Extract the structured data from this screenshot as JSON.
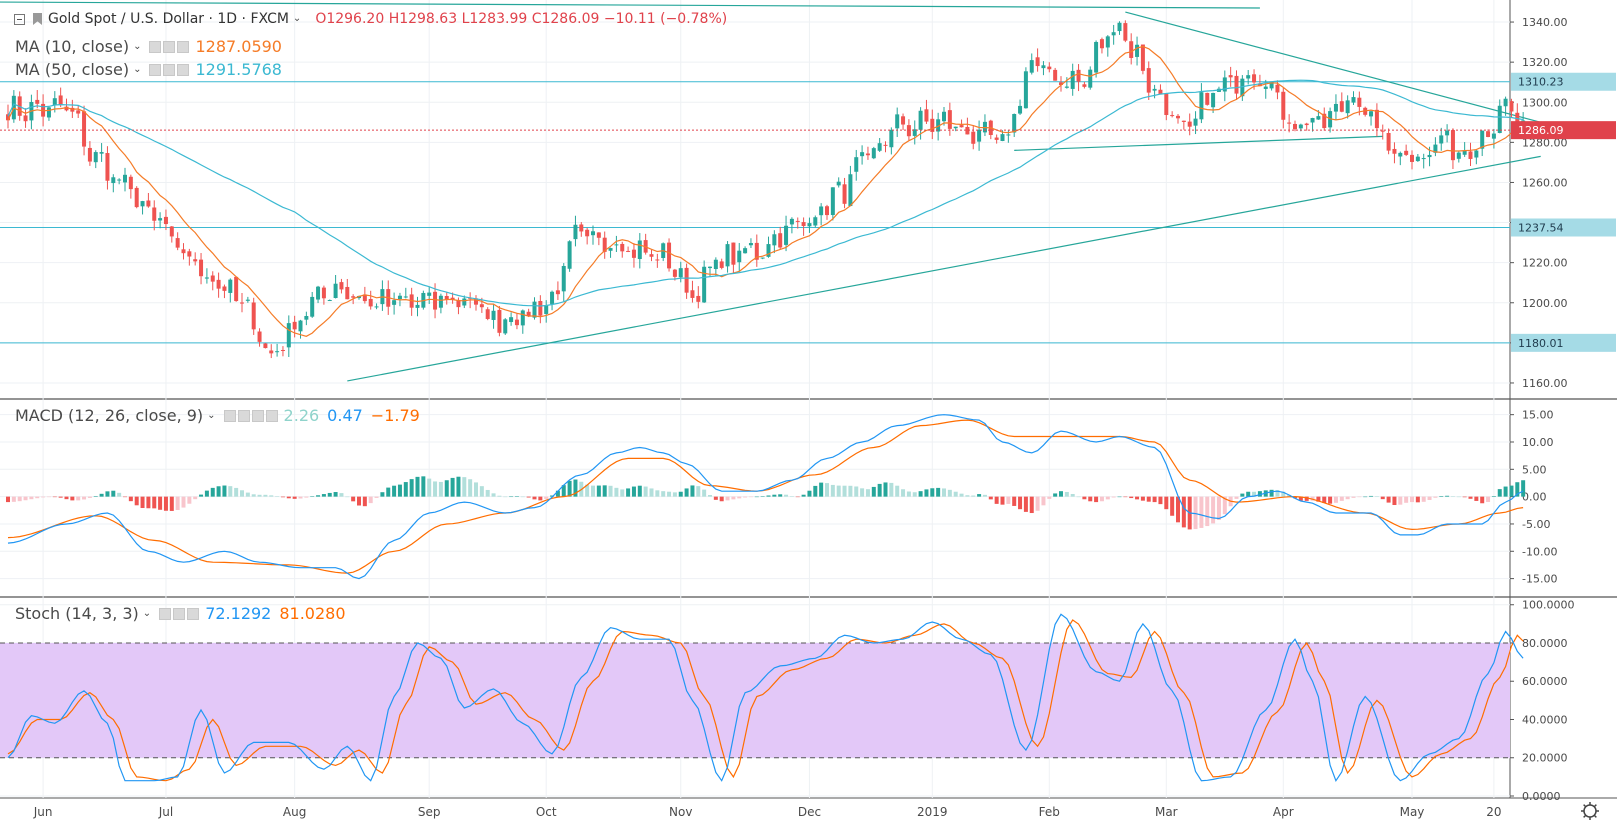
{
  "header": {
    "symbol": "Gold Spot / U.S. Dollar",
    "interval": "1D",
    "exchange": "FXCM",
    "open": "O1296.20",
    "high": "H1298.63",
    "low": "L1283.99",
    "close": "C1286.09",
    "change": "−10.11 (−0.78%)"
  },
  "indicators": {
    "ma10": {
      "label": "MA (10, close)",
      "value": "1287.0590",
      "color": "#f57c28"
    },
    "ma50": {
      "label": "MA (50, close)",
      "value": "1291.5768",
      "color": "#3cb9d2"
    },
    "macd": {
      "label": "MACD (12, 26, close, 9)",
      "hist": "2.26",
      "macd": "0.47",
      "signal": "−1.79"
    },
    "stoch": {
      "label": "Stoch (14, 3, 3)",
      "k": "72.1292",
      "d": "81.0280"
    }
  },
  "colors": {
    "up": "#26a69a",
    "down": "#ef5350",
    "hist_up": "#26a69a",
    "hist_up_light": "#b2dfdb",
    "hist_down": "#ef5350",
    "hist_down_light": "#f8c5cc",
    "macd_line": "#2196f3",
    "signal_line": "#ff6d00",
    "stoch_band": "#e3c8f8",
    "hline": "#3cb9d2",
    "trendline": "#26a69a",
    "last_price": "#e0424b"
  },
  "chart_data": [
    {
      "type": "candlestick",
      "title": "Gold Spot / U.S. Dollar",
      "y_ticks": [
        1160,
        1180,
        1200,
        1220,
        1240,
        1260,
        1280,
        1300,
        1320,
        1340
      ],
      "ylim": [
        1153,
        1350
      ],
      "x_labels": [
        "Jun",
        "Jul",
        "Aug",
        "Sep",
        "Oct",
        "Nov",
        "Dec",
        "2019",
        "Feb",
        "Mar",
        "Apr",
        "May",
        "20"
      ],
      "anchors": [
        [
          0,
          1296
        ],
        [
          10,
          1297
        ],
        [
          15,
          1272
        ],
        [
          20,
          1258
        ],
        [
          25,
          1242
        ],
        [
          30,
          1224
        ],
        [
          35,
          1212
        ],
        [
          40,
          1200
        ],
        [
          43,
          1185
        ],
        [
          45,
          1172
        ],
        [
          48,
          1186
        ],
        [
          52,
          1200
        ],
        [
          56,
          1208
        ],
        [
          62,
          1200
        ],
        [
          70,
          1200
        ],
        [
          78,
          1202
        ],
        [
          83,
          1192
        ],
        [
          88,
          1194
        ],
        [
          93,
          1202
        ],
        [
          97,
          1232
        ],
        [
          103,
          1232
        ],
        [
          107,
          1226
        ],
        [
          112,
          1223
        ],
        [
          117,
          1205
        ],
        [
          122,
          1222
        ],
        [
          128,
          1226
        ],
        [
          133,
          1236
        ],
        [
          138,
          1244
        ],
        [
          142,
          1255
        ],
        [
          147,
          1272
        ],
        [
          152,
          1288
        ],
        [
          160,
          1290
        ],
        [
          166,
          1283
        ],
        [
          170,
          1280
        ],
        [
          175,
          1318
        ],
        [
          180,
          1312
        ],
        [
          184,
          1310
        ],
        [
          187,
          1330
        ],
        [
          190,
          1340
        ],
        [
          192,
          1326
        ],
        [
          197,
          1302
        ],
        [
          201,
          1284
        ],
        [
          206,
          1305
        ],
        [
          213,
          1316
        ],
        [
          216,
          1308
        ],
        [
          219,
          1290
        ],
        [
          225,
          1290
        ],
        [
          230,
          1304
        ],
        [
          233,
          1290
        ],
        [
          237,
          1276
        ],
        [
          242,
          1274
        ],
        [
          246,
          1282
        ],
        [
          248,
          1274
        ],
        [
          252,
          1284
        ],
        [
          256,
          1296
        ],
        [
          259,
          1286
        ]
      ],
      "price_lines": [
        {
          "label": "1310.23",
          "value": 1310.23
        },
        {
          "label": "1237.54",
          "value": 1237.54
        },
        {
          "label": "1180.01",
          "value": 1180.01
        }
      ],
      "last_price": {
        "label": "1286.09",
        "value": 1286.09
      },
      "trendlines": [
        {
          "from": [
            -4,
            1350
          ],
          "to": [
            214,
            1347
          ]
        },
        {
          "from": [
            191,
            1345
          ],
          "to": [
            262,
            1290
          ]
        },
        {
          "from": [
            172,
            1276
          ],
          "to": [
            235,
            1283
          ]
        },
        {
          "from": [
            58,
            1161
          ],
          "to": [
            262,
            1273
          ]
        }
      ],
      "series": [
        {
          "name": "MA (10, close)",
          "color": "#f57c28",
          "period": 10
        },
        {
          "name": "MA (50, close)",
          "color": "#3cb9d2",
          "period": 50
        }
      ],
      "grid": true
    },
    {
      "type": "line",
      "title": "MACD (12, 26, close, 9)",
      "y_ticks": [
        -15,
        -10,
        -5,
        0,
        5,
        10,
        15
      ],
      "ylim": [
        -18,
        17.5
      ],
      "anchors_macd": [
        [
          0,
          -8.5
        ],
        [
          10,
          -5
        ],
        [
          17,
          -3
        ],
        [
          24,
          -10
        ],
        [
          30,
          -12
        ],
        [
          37,
          -10
        ],
        [
          43,
          -12
        ],
        [
          50,
          -13
        ],
        [
          56,
          -13
        ],
        [
          60,
          -15
        ],
        [
          66,
          -8
        ],
        [
          72,
          -3
        ],
        [
          78,
          -1
        ],
        [
          85,
          -3
        ],
        [
          90,
          -2
        ],
        [
          98,
          4
        ],
        [
          104,
          8
        ],
        [
          108,
          9
        ],
        [
          112,
          8
        ],
        [
          116,
          6
        ],
        [
          122,
          1
        ],
        [
          128,
          1
        ],
        [
          134,
          3
        ],
        [
          140,
          7
        ],
        [
          146,
          10
        ],
        [
          152,
          13
        ],
        [
          160,
          15
        ],
        [
          166,
          14
        ],
        [
          170,
          10
        ],
        [
          175,
          8
        ],
        [
          180,
          12
        ],
        [
          186,
          10
        ],
        [
          190,
          11
        ],
        [
          196,
          9
        ],
        [
          202,
          -3
        ],
        [
          207,
          -4
        ],
        [
          212,
          0
        ],
        [
          217,
          1
        ],
        [
          222,
          -1
        ],
        [
          227,
          -3
        ],
        [
          233,
          -3
        ],
        [
          238,
          -7
        ],
        [
          241,
          -7
        ],
        [
          246,
          -5
        ],
        [
          252,
          -5
        ],
        [
          256,
          -1
        ],
        [
          259,
          1
        ]
      ],
      "anchors_signal": [
        [
          0,
          -7.5
        ],
        [
          15,
          -3.5
        ],
        [
          25,
          -8
        ],
        [
          35,
          -12
        ],
        [
          48,
          -12.5
        ],
        [
          58,
          -14
        ],
        [
          66,
          -10
        ],
        [
          75,
          -5
        ],
        [
          85,
          -3
        ],
        [
          95,
          0
        ],
        [
          106,
          7
        ],
        [
          112,
          7
        ],
        [
          120,
          2
        ],
        [
          128,
          1
        ],
        [
          138,
          4
        ],
        [
          148,
          9
        ],
        [
          156,
          13
        ],
        [
          164,
          14
        ],
        [
          172,
          11
        ],
        [
          182,
          11
        ],
        [
          190,
          11
        ],
        [
          196,
          10
        ],
        [
          202,
          3
        ],
        [
          210,
          -1
        ],
        [
          220,
          0
        ],
        [
          232,
          -3
        ],
        [
          240,
          -6
        ],
        [
          248,
          -5
        ],
        [
          255,
          -3
        ],
        [
          259,
          -2
        ]
      ],
      "series": [
        {
          "name": "MACD",
          "color": "#2196f3"
        },
        {
          "name": "Signal",
          "color": "#ff6d00"
        }
      ],
      "grid": true
    },
    {
      "type": "line",
      "title": "Stoch (14, 3, 3)",
      "y_ticks": [
        0,
        20,
        40,
        60,
        80,
        100
      ],
      "ylim": [
        0,
        103
      ],
      "bands": [
        20,
        80
      ],
      "anchors_k": [
        [
          0,
          20
        ],
        [
          4,
          42
        ],
        [
          8,
          38
        ],
        [
          13,
          55
        ],
        [
          17,
          38
        ],
        [
          20,
          8
        ],
        [
          25,
          8
        ],
        [
          29,
          10
        ],
        [
          33,
          45
        ],
        [
          37,
          12
        ],
        [
          42,
          28
        ],
        [
          48,
          28
        ],
        [
          54,
          14
        ],
        [
          58,
          26
        ],
        [
          62,
          8
        ],
        [
          66,
          52
        ],
        [
          70,
          80
        ],
        [
          74,
          72
        ],
        [
          78,
          46
        ],
        [
          83,
          56
        ],
        [
          88,
          38
        ],
        [
          93,
          22
        ],
        [
          98,
          62
        ],
        [
          103,
          88
        ],
        [
          108,
          82
        ],
        [
          113,
          82
        ],
        [
          117,
          50
        ],
        [
          122,
          8
        ],
        [
          126,
          54
        ],
        [
          132,
          68
        ],
        [
          138,
          72
        ],
        [
          143,
          84
        ],
        [
          148,
          80
        ],
        [
          153,
          82
        ],
        [
          158,
          91
        ],
        [
          163,
          82
        ],
        [
          168,
          74
        ],
        [
          174,
          24
        ],
        [
          180,
          95
        ],
        [
          186,
          65
        ],
        [
          190,
          60
        ],
        [
          194,
          90
        ],
        [
          199,
          55
        ],
        [
          204,
          8
        ],
        [
          209,
          10
        ],
        [
          215,
          45
        ],
        [
          220,
          82
        ],
        [
          223,
          60
        ],
        [
          227,
          8
        ],
        [
          232,
          52
        ],
        [
          238,
          8
        ],
        [
          243,
          22
        ],
        [
          248,
          30
        ],
        [
          253,
          64
        ],
        [
          256,
          86
        ],
        [
          259,
          72
        ]
      ],
      "anchors_d": [
        [
          0,
          22
        ],
        [
          5,
          40
        ],
        [
          9,
          40
        ],
        [
          14,
          54
        ],
        [
          18,
          40
        ],
        [
          22,
          10
        ],
        [
          27,
          8
        ],
        [
          31,
          14
        ],
        [
          35,
          40
        ],
        [
          39,
          16
        ],
        [
          44,
          26
        ],
        [
          50,
          26
        ],
        [
          56,
          16
        ],
        [
          60,
          24
        ],
        [
          64,
          12
        ],
        [
          68,
          48
        ],
        [
          72,
          78
        ],
        [
          76,
          70
        ],
        [
          80,
          48
        ],
        [
          85,
          54
        ],
        [
          90,
          40
        ],
        [
          95,
          24
        ],
        [
          100,
          60
        ],
        [
          105,
          86
        ],
        [
          110,
          84
        ],
        [
          115,
          80
        ],
        [
          119,
          52
        ],
        [
          124,
          10
        ],
        [
          128,
          52
        ],
        [
          134,
          66
        ],
        [
          140,
          72
        ],
        [
          145,
          82
        ],
        [
          150,
          80
        ],
        [
          155,
          84
        ],
        [
          160,
          90
        ],
        [
          165,
          80
        ],
        [
          170,
          72
        ],
        [
          176,
          26
        ],
        [
          182,
          92
        ],
        [
          188,
          64
        ],
        [
          192,
          62
        ],
        [
          196,
          86
        ],
        [
          201,
          54
        ],
        [
          206,
          10
        ],
        [
          211,
          12
        ],
        [
          217,
          44
        ],
        [
          222,
          80
        ],
        [
          225,
          60
        ],
        [
          229,
          12
        ],
        [
          234,
          50
        ],
        [
          240,
          10
        ],
        [
          245,
          22
        ],
        [
          250,
          30
        ],
        [
          255,
          62
        ],
        [
          258,
          84
        ],
        [
          259,
          81
        ]
      ],
      "series": [
        {
          "name": "%K",
          "color": "#2196f3"
        },
        {
          "name": "%D",
          "color": "#ff6d00"
        }
      ],
      "grid": true
    }
  ]
}
